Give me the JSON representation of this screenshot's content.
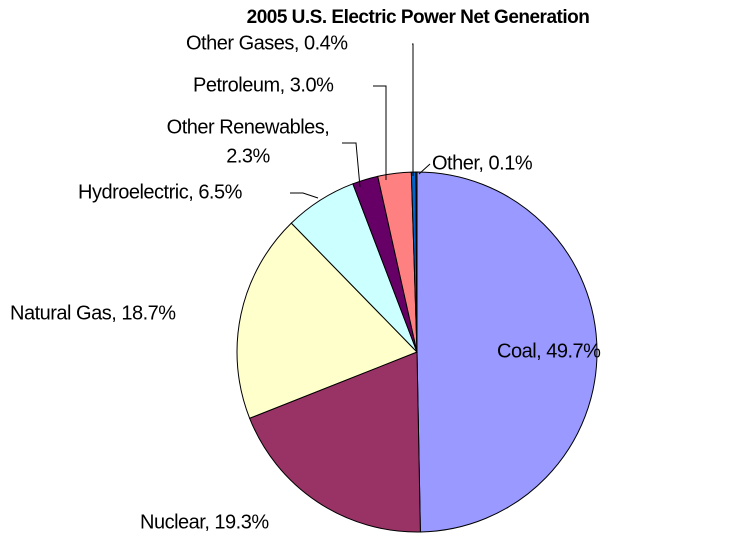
{
  "chart_data": {
    "type": "pie",
    "title": "2005 U.S. Electric Power Net Generation",
    "values": [
      49.7,
      19.3,
      18.7,
      6.5,
      2.3,
      3.0,
      0.4,
      0.1
    ],
    "value_labels": [
      [
        "Coal, 49.7%"
      ],
      [
        "Nuclear, 19.3%"
      ],
      [
        "Natural Gas, 18.7%"
      ],
      [
        "Hydroelectric, 6.5%"
      ],
      [
        "Other Renewables,",
        "2.3%"
      ],
      [
        "Petroleum, 3.0%"
      ],
      [
        "Other Gases, 0.4%"
      ],
      [
        "Other, 0.1%"
      ]
    ],
    "colors": [
      "#9999ff",
      "#993366",
      "#ffffcc",
      "#ccffff",
      "#660066",
      "#ff8080",
      "#0066cc",
      "#c0c0c0"
    ]
  }
}
